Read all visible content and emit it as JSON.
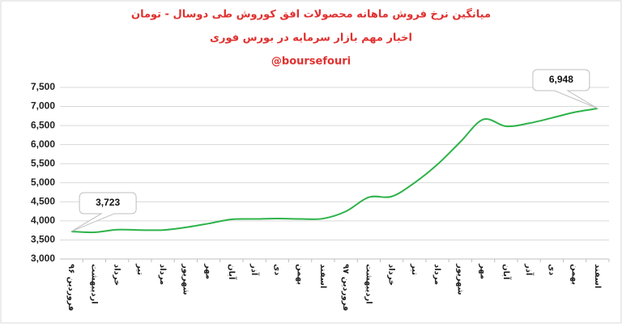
{
  "chart_data": {
    "type": "line",
    "title": "میانگین نرخ فروش ماهانه محصولات افق کوروش طی دوسال - تومان",
    "subtitle": "اخبار مهم بازار سرمایه در بورس فوری",
    "caption": "@boursefouri",
    "categories": [
      "فروردین ۹۶",
      "اردیبهشت",
      "خرداد",
      "تیر",
      "مرداد",
      "شهریور",
      "مهر",
      "آبان",
      "آذر",
      "دی",
      "بهمن",
      "اسفند",
      "فروردین ۹۷",
      "اردیبهشت",
      "خرداد",
      "تیر",
      "مرداد",
      "شهریور",
      "مهر",
      "آبان",
      "آذر",
      "دی",
      "بهمن",
      "اسفند"
    ],
    "series": [
      {
        "color": "#2db34a",
        "values": [
          3723,
          3700,
          3770,
          3760,
          3760,
          3830,
          3930,
          4040,
          4050,
          4060,
          4050,
          4060,
          4250,
          4620,
          4640,
          5000,
          5480,
          6070,
          6660,
          6480,
          6560,
          6700,
          6850,
          6948
        ],
        "value_labels": [
          "3,723",
          null,
          null,
          null,
          null,
          null,
          null,
          null,
          null,
          null,
          null,
          null,
          null,
          null,
          null,
          null,
          null,
          null,
          null,
          null,
          null,
          null,
          null,
          "6,948"
        ]
      }
    ],
    "ylim": [
      3000,
      7500
    ],
    "yticks": [
      {
        "value": 3000,
        "label": "3,000"
      },
      {
        "value": 3500,
        "label": "3,500"
      },
      {
        "value": 4000,
        "label": "4,000"
      },
      {
        "value": 4500,
        "label": "4,500"
      },
      {
        "value": 5000,
        "label": "5,000"
      },
      {
        "value": 5500,
        "label": "5,500"
      },
      {
        "value": 6000,
        "label": "6,000"
      },
      {
        "value": 6500,
        "label": "6,500"
      },
      {
        "value": 7000,
        "label": "7,000"
      },
      {
        "value": 7500,
        "label": "7,500"
      }
    ],
    "grid": true
  }
}
